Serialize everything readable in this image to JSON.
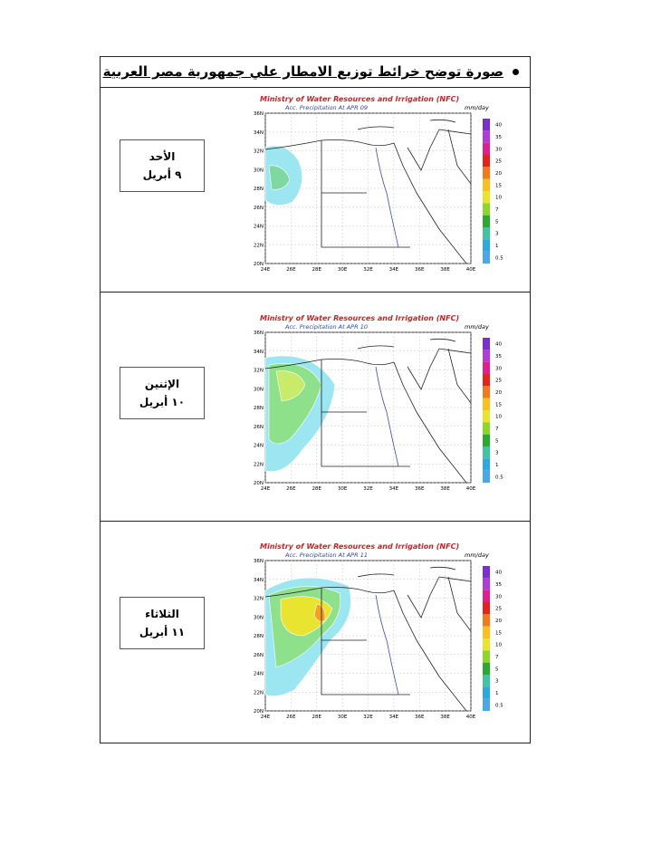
{
  "header": {
    "title": "صورة توضح خرائط توزيع الامطار علي جمهورية مصر العربية"
  },
  "rows": [
    {
      "day": "الأحد",
      "date": "٩ أبريل",
      "map": {
        "title": "Ministry of Water Resources and Irrigation (NFC)",
        "subtitle": "Acc. Precipitation  At APR 09",
        "unit": "mm/day"
      }
    },
    {
      "day": "الإثنين",
      "date": "١٠ أبريل",
      "map": {
        "title": "Ministry of Water Resources and Irrigation (NFC)",
        "subtitle": "Acc. Precipitation  At APR 10",
        "unit": "mm/day"
      }
    },
    {
      "day": "الثلاثاء",
      "date": "١١ أبريل",
      "map": {
        "title": "Ministry of Water Resources and Irrigation (NFC)",
        "subtitle": "Acc. Precipitation  At APR 11",
        "unit": "mm/day"
      }
    }
  ],
  "map_axes": {
    "x_labels": [
      "24E",
      "26E",
      "28E",
      "30E",
      "32E",
      "34E",
      "36E",
      "38E",
      "40E"
    ],
    "y_labels": [
      "36N",
      "34N",
      "32N",
      "30N",
      "28N",
      "26N",
      "24N",
      "22N",
      "20N"
    ]
  },
  "scale": {
    "labels": [
      40,
      35,
      30,
      25,
      20,
      15,
      10,
      7,
      5,
      3,
      1,
      0.5
    ]
  }
}
